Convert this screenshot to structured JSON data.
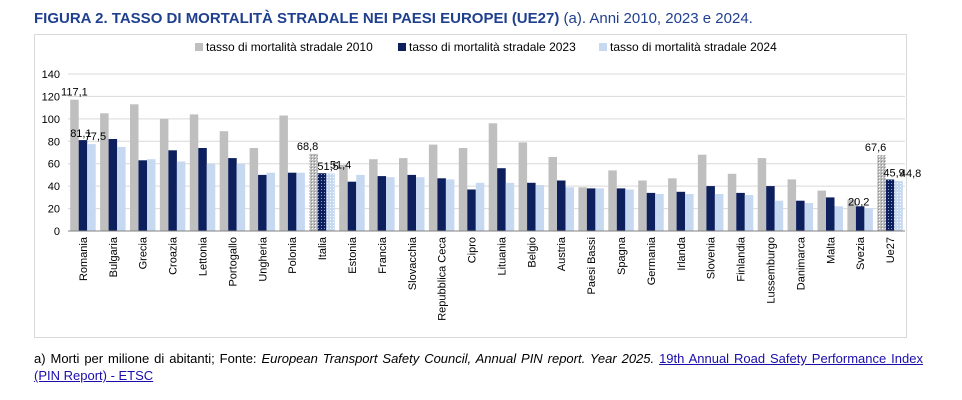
{
  "title": {
    "prefix": "FIGURA 2.",
    "main": "TASSO DI MORTALITÀ STRADALE NEI PAESI EUROPEI (UE27)",
    "rest": "(a). Anni 2010, 2023 e 2024."
  },
  "footnote": {
    "note": "a) Morti per milione di abitanti; Fonte:",
    "source": "European Transport Safety Council, Annual PIN report. Year 2025.",
    "link": "19th Annual Road Safety Performance Index (PIN Report) - ETSC"
  },
  "colors": {
    "s2010": "#bfbfbf",
    "s2023": "#0d1f5c",
    "s2024": "#c6d9f1",
    "grid": "#d9d9d9"
  },
  "chart_data": {
    "type": "bar",
    "ylim": [
      0,
      140
    ],
    "yticks": [
      0,
      20,
      40,
      60,
      80,
      100,
      120,
      140
    ],
    "legend_position": "top",
    "categories": [
      "Romania",
      "Bulgaria",
      "Grecia",
      "Croazia",
      "Lettonia",
      "Portogallo",
      "Ungheria",
      "Polonia",
      "Italia",
      "Estonia",
      "Francia",
      "Slovacchia",
      "Repubblica Ceca",
      "Cipro",
      "Lituania",
      "Belgio",
      "Austria",
      "Paesi Bassi",
      "Spagna",
      "Germania",
      "Irlanda",
      "Slovenia",
      "Finlandia",
      "Lussemburgo",
      "Danimarca",
      "Malta",
      "Svezia",
      "Ue27"
    ],
    "series": [
      {
        "name": "tasso di mortalità stradale 2010",
        "values": [
          117.1,
          105,
          113,
          100,
          104,
          89,
          74,
          103,
          68.8,
          59,
          64,
          65,
          77,
          74,
          96,
          79,
          66,
          39,
          54,
          45,
          47,
          68,
          51,
          65,
          46,
          36,
          28,
          67.6
        ]
      },
      {
        "name": "tasso di mortalità stradale 2023",
        "values": [
          81.1,
          82,
          63,
          72,
          74,
          65,
          50,
          52,
          51.5,
          44,
          49,
          50,
          47,
          37,
          56,
          43,
          45,
          38,
          38,
          34,
          35,
          40,
          34,
          40,
          27,
          30,
          22,
          45.9
        ]
      },
      {
        "name": "tasso di mortalità stradale 2024",
        "values": [
          77.5,
          75,
          64,
          62,
          60,
          60,
          52,
          52,
          51.4,
          50,
          48,
          48,
          46,
          43,
          43,
          41,
          39,
          38,
          37,
          33,
          33,
          33,
          32,
          27,
          25,
          22,
          20.2,
          44.8
        ]
      }
    ],
    "data_labels": [
      {
        "category": "Romania",
        "series": 0,
        "text": "117,1"
      },
      {
        "category": "Romania",
        "series": 1,
        "text": "81,1"
      },
      {
        "category": "Romania",
        "series": 2,
        "text": "77,5"
      },
      {
        "category": "Italia",
        "series": 0,
        "text": "68,8"
      },
      {
        "category": "Italia",
        "series": 1,
        "text": "51,5"
      },
      {
        "category": "Italia",
        "series": 2,
        "text": "51,4"
      },
      {
        "category": "Svezia",
        "series": 2,
        "text": "20,2"
      },
      {
        "category": "Ue27",
        "series": 0,
        "text": "67,6"
      },
      {
        "category": "Ue27",
        "series": 1,
        "text": "45,9"
      },
      {
        "category": "Ue27",
        "series": 2,
        "text": "44,8"
      }
    ]
  }
}
